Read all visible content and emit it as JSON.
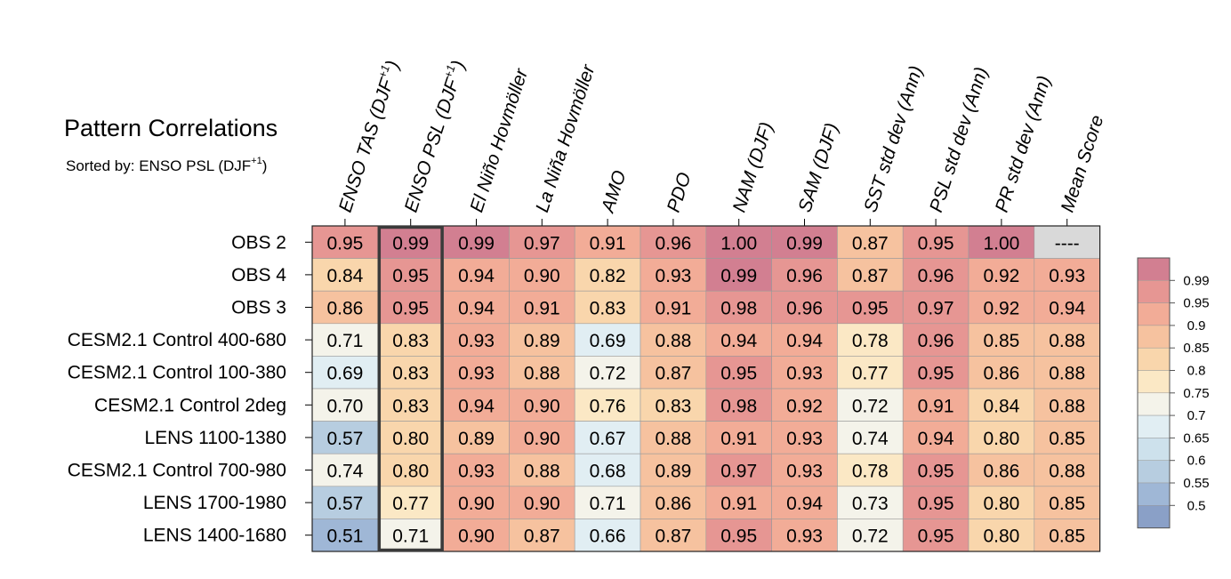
{
  "chart_data": {
    "type": "heatmap",
    "title": "Pattern Correlations",
    "subtitle": "Sorted by: ENSO PSL (DJF+1)",
    "columns": [
      "ENSO TAS (DJF+1)",
      "ENSO PSL (DJF+1)",
      "El Niño Hovmöller",
      "La Niña Hovmöller",
      "AMO",
      "PDO",
      "NAM (DJF)",
      "SAM (DJF)",
      "SST std dev (Ann)",
      "PSL std dev (Ann)",
      "PR std dev (Ann)",
      "Mean Score"
    ],
    "rows": [
      "OBS 2",
      "OBS 4",
      "OBS 3",
      "CESM2.1 Control 400-680",
      "CESM2.1 Control 100-380",
      "CESM2.1 Control 2deg",
      "LENS 1100-1380",
      "CESM2.1 Control 700-980",
      "LENS 1700-1980",
      "LENS 1400-1680"
    ],
    "values": [
      [
        "0.95",
        "0.99",
        "0.99",
        "0.97",
        "0.91",
        "0.96",
        "1.00",
        "0.99",
        "0.87",
        "0.95",
        "1.00",
        "----"
      ],
      [
        "0.84",
        "0.95",
        "0.94",
        "0.90",
        "0.82",
        "0.93",
        "0.99",
        "0.96",
        "0.87",
        "0.96",
        "0.92",
        "0.93"
      ],
      [
        "0.86",
        "0.95",
        "0.94",
        "0.91",
        "0.83",
        "0.91",
        "0.98",
        "0.96",
        "0.95",
        "0.97",
        "0.92",
        "0.94"
      ],
      [
        "0.71",
        "0.83",
        "0.93",
        "0.89",
        "0.69",
        "0.88",
        "0.94",
        "0.94",
        "0.78",
        "0.96",
        "0.85",
        "0.88"
      ],
      [
        "0.69",
        "0.83",
        "0.93",
        "0.88",
        "0.72",
        "0.87",
        "0.95",
        "0.93",
        "0.77",
        "0.95",
        "0.86",
        "0.88"
      ],
      [
        "0.70",
        "0.83",
        "0.94",
        "0.90",
        "0.76",
        "0.83",
        "0.98",
        "0.92",
        "0.72",
        "0.91",
        "0.84",
        "0.88"
      ],
      [
        "0.57",
        "0.80",
        "0.89",
        "0.90",
        "0.67",
        "0.88",
        "0.91",
        "0.93",
        "0.74",
        "0.94",
        "0.80",
        "0.85"
      ],
      [
        "0.74",
        "0.80",
        "0.93",
        "0.88",
        "0.68",
        "0.89",
        "0.97",
        "0.93",
        "0.78",
        "0.95",
        "0.86",
        "0.88"
      ],
      [
        "0.57",
        "0.77",
        "0.90",
        "0.90",
        "0.71",
        "0.86",
        "0.91",
        "0.94",
        "0.73",
        "0.95",
        "0.80",
        "0.85"
      ],
      [
        "0.51",
        "0.71",
        "0.90",
        "0.87",
        "0.66",
        "0.87",
        "0.95",
        "0.93",
        "0.72",
        "0.95",
        "0.80",
        "0.85"
      ]
    ],
    "highlighted_column": "ENSO PSL (DJF+1)",
    "missing_color": "#d9d9d9",
    "colorbar": {
      "levels": [
        "0.99",
        "0.95",
        "0.9",
        "0.85",
        "0.8",
        "0.75",
        "0.7",
        "0.65",
        "0.6",
        "0.55",
        "0.5"
      ],
      "colors": [
        "#d27f91",
        "#e69693",
        "#f2ac97",
        "#f6c29f",
        "#f9d6ac",
        "#fbe8c5",
        "#f4f3ea",
        "#e1eef3",
        "#cde1ec",
        "#b7cde0",
        "#9fb7d6",
        "#8aa0c7"
      ]
    }
  }
}
